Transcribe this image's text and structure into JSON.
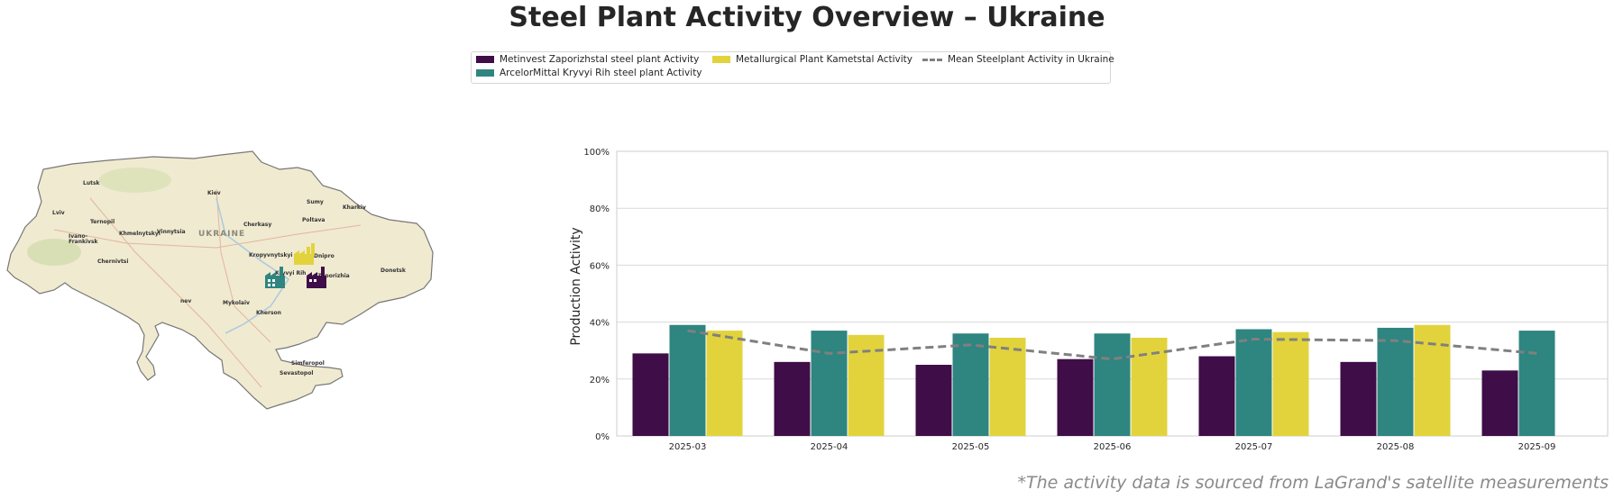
{
  "title": "Steel Plant Activity Overview – Ukraine",
  "source_note": "*The activity data is sourced from LaGrand's satellite measurements",
  "colors": {
    "zaporizhstal": "#3f0d47",
    "kryvyi_rih": "#2f8580",
    "kametstal": "#e2d33c",
    "mean": "#808080"
  },
  "map": {
    "country_label": "UKRAINE",
    "cities": [
      "Lutsk",
      "Kiev",
      "Sumy",
      "Kharkiv",
      "Lviv",
      "Ternopil",
      "Khmelnytskyi",
      "Vinnytsia",
      "Cherkasy",
      "Poltava",
      "Ivano-",
      "Frankivsk",
      "Chernivtsi",
      "Kropyvnytskyi",
      "Dnipro",
      "Kryvyi Rih",
      "Zaporizhia",
      "Donetsk",
      "Mykolaiv",
      "Kherson",
      "Simferopol",
      "Sevastopol",
      "nev"
    ],
    "plant_icons": [
      "factory-icon-kametstal",
      "factory-icon-kryvyi-rih",
      "factory-icon-zaporizhstal"
    ]
  },
  "chart_data": {
    "type": "bar",
    "categories": [
      "2025-03",
      "2025-04",
      "2025-05",
      "2025-06",
      "2025-07",
      "2025-08",
      "2025-09"
    ],
    "series": [
      {
        "name": "Metinvest Zaporizhstal steel plant Activity",
        "color": "#3f0d47",
        "values": [
          29,
          26,
          25,
          27,
          28,
          26,
          23
        ]
      },
      {
        "name": "ArcelorMittal Kryvyi Rih steel plant Activity",
        "color": "#2f8580",
        "values": [
          39,
          37,
          36,
          36,
          37.5,
          38,
          37
        ]
      },
      {
        "name": "Metallurgical Plant Kametstal Activity",
        "color": "#e2d33c",
        "values": [
          37,
          35.5,
          34.5,
          34.5,
          36.5,
          39,
          null
        ]
      },
      {
        "name": "Mean Steelplant Activity in Ukraine",
        "type": "line",
        "style": "dashed",
        "color": "#808080",
        "values": [
          37,
          29,
          32,
          27,
          34,
          33.5,
          29
        ]
      }
    ],
    "ylabel": "Production Activity",
    "xlabel": "",
    "ylim": [
      0,
      100
    ],
    "yticks": [
      "0%",
      "20%",
      "40%",
      "60%",
      "80%",
      "100%"
    ],
    "ytick_values": [
      0,
      20,
      40,
      60,
      80,
      100
    ],
    "grid": true,
    "legend_position": "top-center"
  }
}
